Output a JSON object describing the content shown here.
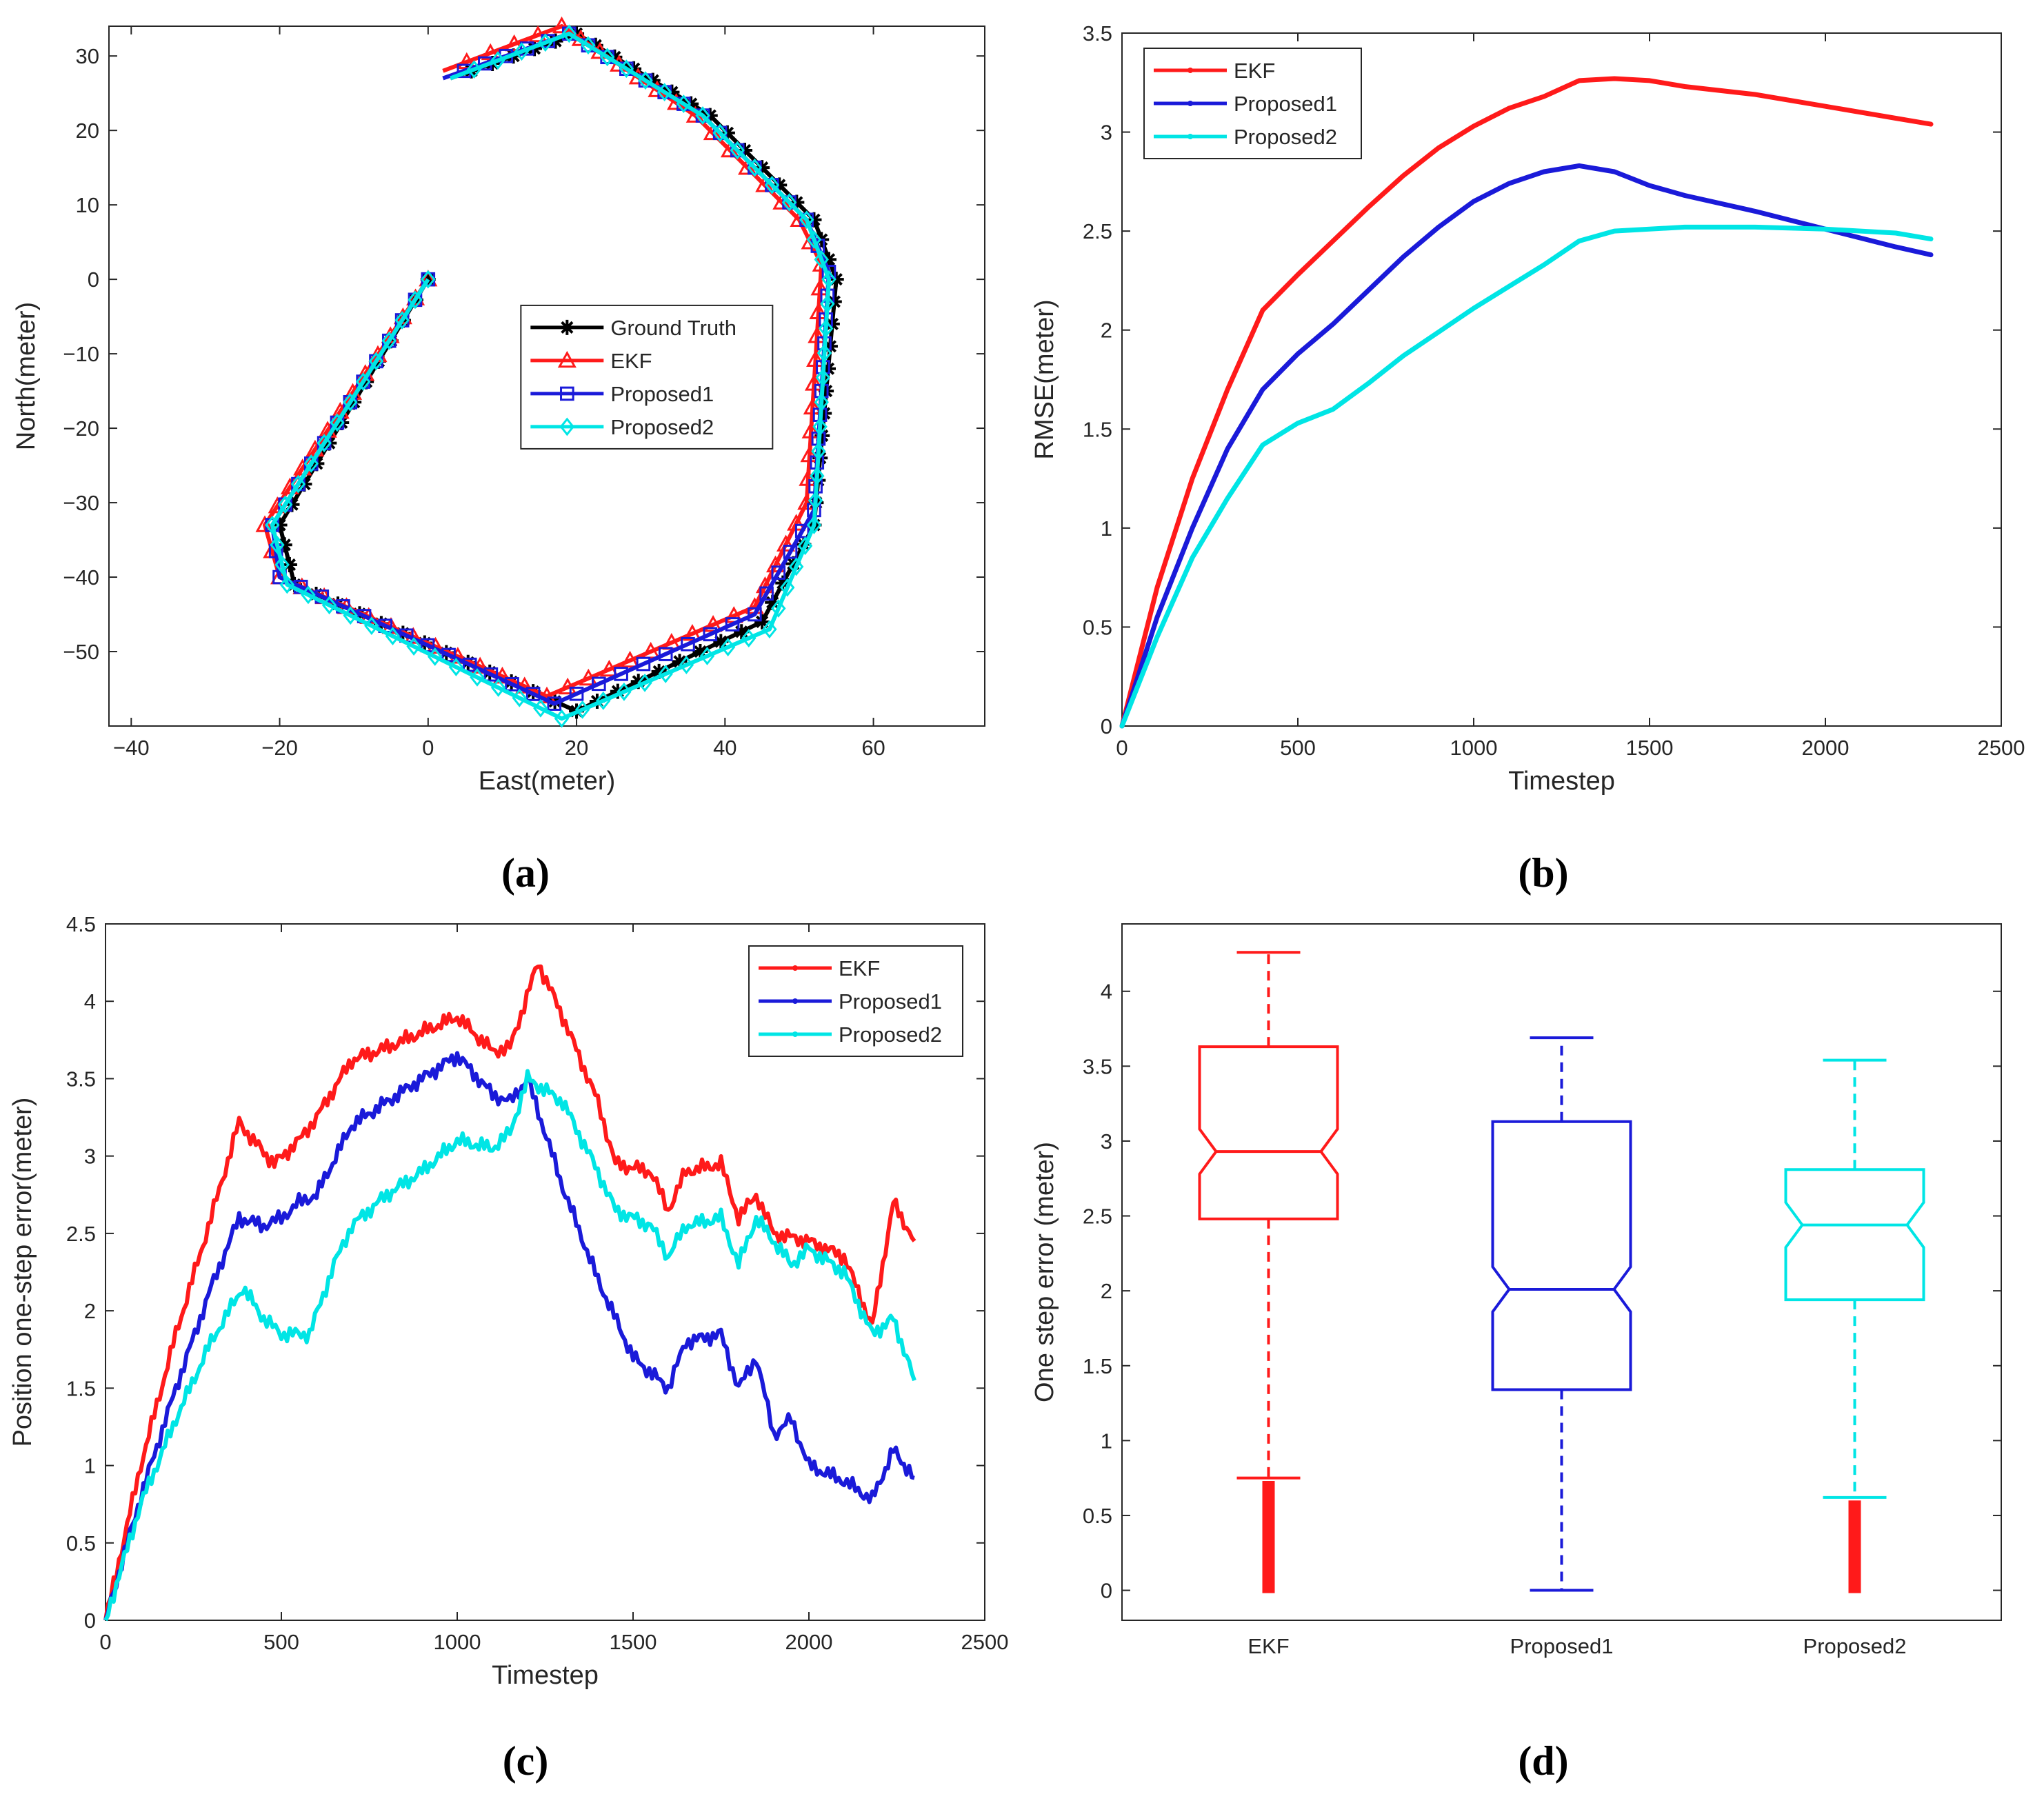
{
  "panel_labels": [
    "(a)",
    "(b)",
    "(c)",
    "(d)"
  ],
  "colors": {
    "ground_truth": "#000000",
    "ekf": "#ff1a1a",
    "proposed1": "#1a1ad9",
    "proposed2": "#00e5e5",
    "axis": "#262626"
  },
  "chart_data": [
    {
      "type": "line",
      "panel": "(a)",
      "xlabel": "East(meter)",
      "ylabel": "North(meter)",
      "xlim": [
        -43,
        75
      ],
      "ylim": [
        -60,
        34
      ],
      "xticks": [
        -40,
        -20,
        0,
        20,
        40,
        60
      ],
      "xtick_labels": [
        "−40",
        "−20",
        "0",
        "20",
        "40",
        "60"
      ],
      "yticks": [
        -50,
        -40,
        -30,
        -20,
        -10,
        0,
        10,
        20,
        30
      ],
      "ytick_labels": [
        "−50",
        "−40",
        "−30",
        "−20",
        "−10",
        "0",
        "10",
        "20",
        "30"
      ],
      "legend": [
        "Ground Truth",
        "EKF",
        "Proposed1",
        "Proposed2"
      ],
      "legend_position": "center",
      "series": [
        {
          "name": "Ground Truth",
          "marker": "asterisk",
          "points": [
            [
              0,
              0
            ],
            [
              -20,
              -33
            ],
            [
              -18,
              -41
            ],
            [
              20,
              -58
            ],
            [
              45,
              -46
            ],
            [
              52,
              -33
            ],
            [
              55,
              0
            ],
            [
              52,
              8
            ],
            [
              38,
              22
            ],
            [
              20,
              33
            ],
            [
              3,
              27
            ]
          ]
        },
        {
          "name": "EKF",
          "marker": "triangle",
          "points": [
            [
              0,
              0
            ],
            [
              -22,
              -33
            ],
            [
              -20,
              -40
            ],
            [
              16,
              -56
            ],
            [
              44,
              -44
            ],
            [
              51,
              -30
            ],
            [
              53,
              2
            ],
            [
              50,
              8
            ],
            [
              36,
              22
            ],
            [
              18,
              34
            ],
            [
              2,
              28
            ]
          ]
        },
        {
          "name": "Proposed1",
          "marker": "square",
          "points": [
            [
              0,
              0
            ],
            [
              -21,
              -33
            ],
            [
              -20,
              -40
            ],
            [
              17,
              -57
            ],
            [
              44,
              -45
            ],
            [
              52,
              -31
            ],
            [
              54,
              1
            ],
            [
              51,
              8
            ],
            [
              37,
              22
            ],
            [
              19,
              33
            ],
            [
              2,
              27
            ]
          ]
        },
        {
          "name": "Proposed2",
          "marker": "diamond",
          "points": [
            [
              0,
              0
            ],
            [
              -21,
              -33
            ],
            [
              -19,
              -41
            ],
            [
              18,
              -59
            ],
            [
              46,
              -47
            ],
            [
              52,
              -33
            ],
            [
              54,
              0
            ],
            [
              51,
              8
            ],
            [
              37,
              22
            ],
            [
              19,
              33
            ],
            [
              3,
              27
            ]
          ]
        }
      ]
    },
    {
      "type": "line",
      "panel": "(b)",
      "xlabel": "Timestep",
      "ylabel": "RMSE(meter)",
      "xlim": [
        0,
        2500
      ],
      "ylim": [
        0,
        3.5
      ],
      "xticks": [
        0,
        500,
        1000,
        1500,
        2000,
        2500
      ],
      "yticks": [
        0,
        0.5,
        1,
        1.5,
        2,
        2.5,
        3,
        3.5
      ],
      "legend": [
        "EKF",
        "Proposed1",
        "Proposed2"
      ],
      "legend_position": "top-left",
      "series": [
        {
          "name": "EKF",
          "points": [
            [
              0,
              0
            ],
            [
              100,
              0.7
            ],
            [
              200,
              1.25
            ],
            [
              300,
              1.7
            ],
            [
              400,
              2.1
            ],
            [
              500,
              2.28
            ],
            [
              600,
              2.45
            ],
            [
              700,
              2.62
            ],
            [
              800,
              2.78
            ],
            [
              900,
              2.92
            ],
            [
              1000,
              3.03
            ],
            [
              1100,
              3.12
            ],
            [
              1200,
              3.18
            ],
            [
              1300,
              3.26
            ],
            [
              1400,
              3.27
            ],
            [
              1500,
              3.26
            ],
            [
              1600,
              3.23
            ],
            [
              1800,
              3.19
            ],
            [
              2000,
              3.13
            ],
            [
              2200,
              3.07
            ],
            [
              2300,
              3.04
            ]
          ]
        },
        {
          "name": "Proposed1",
          "points": [
            [
              0,
              0
            ],
            [
              100,
              0.55
            ],
            [
              200,
              1.0
            ],
            [
              300,
              1.4
            ],
            [
              400,
              1.7
            ],
            [
              500,
              1.88
            ],
            [
              600,
              2.03
            ],
            [
              700,
              2.2
            ],
            [
              800,
              2.37
            ],
            [
              900,
              2.52
            ],
            [
              1000,
              2.65
            ],
            [
              1100,
              2.74
            ],
            [
              1200,
              2.8
            ],
            [
              1300,
              2.83
            ],
            [
              1400,
              2.8
            ],
            [
              1500,
              2.73
            ],
            [
              1600,
              2.68
            ],
            [
              1800,
              2.6
            ],
            [
              2000,
              2.51
            ],
            [
              2200,
              2.42
            ],
            [
              2300,
              2.38
            ]
          ]
        },
        {
          "name": "Proposed2",
          "points": [
            [
              0,
              0
            ],
            [
              100,
              0.45
            ],
            [
              200,
              0.85
            ],
            [
              300,
              1.15
            ],
            [
              400,
              1.42
            ],
            [
              500,
              1.53
            ],
            [
              600,
              1.6
            ],
            [
              700,
              1.73
            ],
            [
              800,
              1.87
            ],
            [
              900,
              1.99
            ],
            [
              1000,
              2.11
            ],
            [
              1100,
              2.22
            ],
            [
              1200,
              2.33
            ],
            [
              1300,
              2.45
            ],
            [
              1400,
              2.5
            ],
            [
              1600,
              2.52
            ],
            [
              1800,
              2.52
            ],
            [
              2000,
              2.51
            ],
            [
              2200,
              2.49
            ],
            [
              2300,
              2.46
            ]
          ]
        }
      ]
    },
    {
      "type": "line",
      "panel": "(c)",
      "xlabel": "Timestep",
      "ylabel": "Position one-step error(meter)",
      "xlim": [
        0,
        2500
      ],
      "ylim": [
        0,
        4.5
      ],
      "xticks": [
        0,
        500,
        1000,
        1500,
        2000,
        2500
      ],
      "yticks": [
        0,
        0.5,
        1,
        1.5,
        2,
        2.5,
        3,
        3.5,
        4,
        4.5
      ],
      "legend": [
        "EKF",
        "Proposed1",
        "Proposed2"
      ],
      "legend_position": "top-right",
      "series": [
        {
          "name": "EKF",
          "points": [
            [
              0,
              0
            ],
            [
              100,
              1.0
            ],
            [
              200,
              1.85
            ],
            [
              300,
              2.6
            ],
            [
              380,
              3.22
            ],
            [
              420,
              3.1
            ],
            [
              480,
              2.95
            ],
            [
              550,
              3.1
            ],
            [
              600,
              3.25
            ],
            [
              700,
              3.62
            ],
            [
              800,
              3.7
            ],
            [
              900,
              3.8
            ],
            [
              1000,
              3.9
            ],
            [
              1100,
              3.68
            ],
            [
              1150,
              3.7
            ],
            [
              1230,
              4.25
            ],
            [
              1300,
              3.9
            ],
            [
              1400,
              3.35
            ],
            [
              1450,
              2.95
            ],
            [
              1550,
              2.9
            ],
            [
              1600,
              2.65
            ],
            [
              1650,
              2.9
            ],
            [
              1750,
              2.95
            ],
            [
              1800,
              2.6
            ],
            [
              1850,
              2.75
            ],
            [
              1900,
              2.5
            ],
            [
              2000,
              2.45
            ],
            [
              2100,
              2.35
            ],
            [
              2180,
              1.9
            ],
            [
              2240,
              2.7
            ],
            [
              2300,
              2.45
            ]
          ]
        },
        {
          "name": "Proposed1",
          "points": [
            [
              0,
              0
            ],
            [
              100,
              0.8
            ],
            [
              200,
              1.5
            ],
            [
              300,
              2.15
            ],
            [
              380,
              2.6
            ],
            [
              450,
              2.55
            ],
            [
              500,
              2.6
            ],
            [
              550,
              2.7
            ],
            [
              600,
              2.75
            ],
            [
              700,
              3.2
            ],
            [
              800,
              3.35
            ],
            [
              900,
              3.5
            ],
            [
              1000,
              3.65
            ],
            [
              1100,
              3.4
            ],
            [
              1150,
              3.35
            ],
            [
              1200,
              3.5
            ],
            [
              1300,
              2.8
            ],
            [
              1400,
              2.2
            ],
            [
              1500,
              1.7
            ],
            [
              1600,
              1.5
            ],
            [
              1650,
              1.8
            ],
            [
              1750,
              1.85
            ],
            [
              1800,
              1.5
            ],
            [
              1850,
              1.7
            ],
            [
              1900,
              1.2
            ],
            [
              1950,
              1.3
            ],
            [
              2000,
              1.0
            ],
            [
              2100,
              0.9
            ],
            [
              2180,
              0.78
            ],
            [
              2240,
              1.1
            ],
            [
              2300,
              0.92
            ]
          ]
        },
        {
          "name": "Proposed2",
          "points": [
            [
              0,
              0
            ],
            [
              100,
              0.75
            ],
            [
              200,
              1.3
            ],
            [
              300,
              1.8
            ],
            [
              390,
              2.15
            ],
            [
              450,
              1.95
            ],
            [
              500,
              1.85
            ],
            [
              580,
              1.85
            ],
            [
              650,
              2.3
            ],
            [
              700,
              2.55
            ],
            [
              800,
              2.75
            ],
            [
              900,
              2.9
            ],
            [
              1000,
              3.1
            ],
            [
              1100,
              3.05
            ],
            [
              1150,
              3.15
            ],
            [
              1200,
              3.5
            ],
            [
              1300,
              3.35
            ],
            [
              1400,
              2.9
            ],
            [
              1450,
              2.65
            ],
            [
              1550,
              2.55
            ],
            [
              1600,
              2.35
            ],
            [
              1650,
              2.55
            ],
            [
              1750,
              2.6
            ],
            [
              1800,
              2.3
            ],
            [
              1850,
              2.6
            ],
            [
              1950,
              2.3
            ],
            [
              2000,
              2.4
            ],
            [
              2100,
              2.25
            ],
            [
              2180,
              1.85
            ],
            [
              2240,
              1.95
            ],
            [
              2300,
              1.55
            ]
          ]
        }
      ]
    },
    {
      "type": "box",
      "panel": "(d)",
      "xlabel": "",
      "ylabel": "One step error (meter)",
      "ylim": [
        -0.2,
        4.45
      ],
      "yticks": [
        0,
        0.5,
        1,
        1.5,
        2,
        2.5,
        3,
        3.5,
        4
      ],
      "categories": [
        "EKF",
        "Proposed1",
        "Proposed2"
      ],
      "boxes": [
        {
          "name": "EKF",
          "min": 0.75,
          "q1": 2.48,
          "median": 2.93,
          "q3": 3.63,
          "max": 4.26,
          "outliers": [
            0.0,
            0.73
          ]
        },
        {
          "name": "Proposed1",
          "min": 0.0,
          "q1": 1.34,
          "median": 2.01,
          "q3": 3.13,
          "max": 3.69,
          "outliers": []
        },
        {
          "name": "Proposed2",
          "min": 0.62,
          "q1": 1.94,
          "median": 2.44,
          "q3": 2.81,
          "max": 3.54,
          "outliers": [
            0.0,
            0.6
          ]
        }
      ]
    }
  ]
}
